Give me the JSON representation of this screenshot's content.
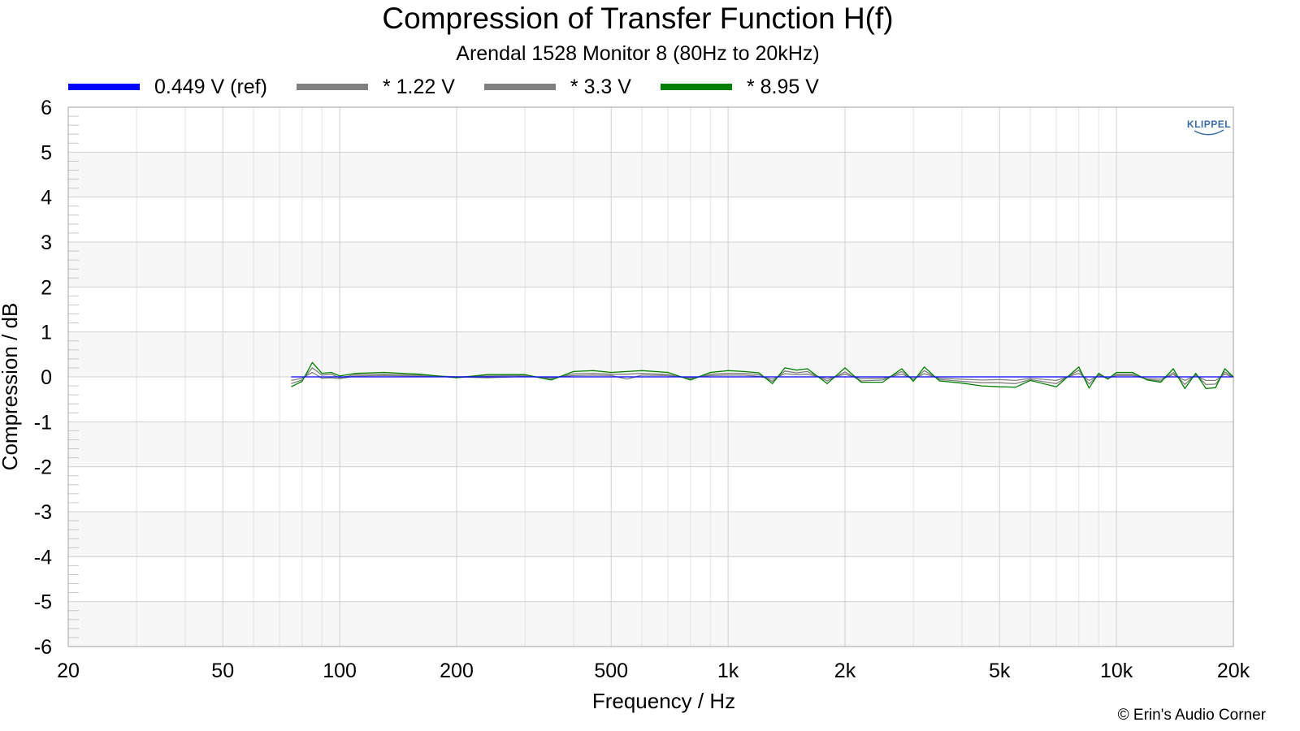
{
  "chart_data": {
    "type": "line",
    "title": "Compression of Transfer Function H(f)",
    "subtitle": "Arendal 1528 Monitor 8 (80Hz to 20kHz)",
    "xlabel": "Frequency / Hz",
    "ylabel": "Compression / dB",
    "xscale": "log",
    "xlim": [
      20,
      20000
    ],
    "ylim": [
      -6,
      6
    ],
    "xticks": [
      20,
      50,
      100,
      200,
      500,
      1000,
      2000,
      5000,
      10000,
      20000
    ],
    "xtick_labels": [
      "20",
      "50",
      "100",
      "200",
      "500",
      "1k",
      "2k",
      "5k",
      "10k",
      "20k"
    ],
    "yticks": [
      6,
      5,
      4,
      3,
      2,
      1,
      0,
      -1,
      -2,
      -3,
      -4,
      -5,
      -6
    ],
    "ytick_labels": [
      "6",
      "5",
      "4",
      "3",
      "2",
      "1",
      "0",
      "-1",
      "-2",
      "-3",
      "-4",
      "-5",
      "-6"
    ],
    "grid": true,
    "legend_position": "top",
    "series": [
      {
        "name": "0.449 V (ref)",
        "color": "#0000ff",
        "x": [
          75,
          20000
        ],
        "y": [
          0,
          0
        ]
      },
      {
        "name": "* 1.22 V",
        "color": "#808080",
        "x": [
          75,
          80,
          85,
          90,
          95,
          100,
          110,
          130,
          160,
          200,
          240,
          300,
          350,
          400,
          450,
          500,
          550,
          600,
          700,
          800,
          900,
          1000,
          1100,
          1200,
          1300,
          1400,
          1500,
          1600,
          1800,
          2000,
          2200,
          2500,
          2800,
          3000,
          3200,
          3500,
          4000,
          4500,
          5000,
          5500,
          6000,
          7000,
          8000,
          8500,
          9000,
          9500,
          10000,
          11000,
          12000,
          13000,
          14000,
          15000,
          16000,
          17000,
          18000,
          19000,
          20000
        ],
        "y": [
          -0.08,
          -0.03,
          0.1,
          -0.03,
          -0.02,
          -0.04,
          0.02,
          0.03,
          0.02,
          0.0,
          -0.02,
          0.01,
          -0.02,
          0.03,
          0.04,
          0.03,
          -0.05,
          0.04,
          0.03,
          -0.02,
          0.03,
          0.04,
          0.04,
          0.01,
          -0.05,
          0.07,
          0.05,
          0.06,
          -0.04,
          0.06,
          -0.04,
          -0.03,
          0.06,
          -0.04,
          0.07,
          -0.03,
          -0.05,
          -0.07,
          -0.06,
          -0.08,
          -0.03,
          -0.08,
          0.08,
          -0.08,
          0.03,
          -0.03,
          0.03,
          0.03,
          -0.04,
          -0.05,
          0.05,
          -0.08,
          0.03,
          -0.08,
          -0.08,
          0.06,
          0.0
        ]
      },
      {
        "name": "* 3.3 V",
        "color": "#808080",
        "x": [
          75,
          80,
          85,
          90,
          95,
          100,
          110,
          130,
          160,
          200,
          240,
          300,
          350,
          400,
          450,
          500,
          550,
          600,
          700,
          800,
          900,
          1000,
          1100,
          1200,
          1300,
          1400,
          1500,
          1600,
          1800,
          2000,
          2200,
          2500,
          2800,
          3000,
          3200,
          3500,
          4000,
          4500,
          5000,
          5500,
          6000,
          7000,
          8000,
          8500,
          9000,
          9500,
          10000,
          11000,
          12000,
          13000,
          14000,
          15000,
          16000,
          17000,
          18000,
          19000,
          20000
        ],
        "y": [
          -0.15,
          -0.07,
          0.2,
          0.04,
          0.06,
          -0.02,
          0.05,
          0.06,
          0.04,
          0.0,
          0.02,
          0.03,
          -0.04,
          0.07,
          0.08,
          0.06,
          0.06,
          0.08,
          0.05,
          -0.04,
          0.06,
          0.08,
          0.08,
          0.05,
          -0.1,
          0.13,
          0.09,
          0.12,
          -0.09,
          0.11,
          -0.09,
          -0.07,
          0.12,
          -0.08,
          0.14,
          -0.06,
          -0.1,
          -0.13,
          -0.13,
          -0.15,
          -0.06,
          -0.15,
          0.15,
          -0.16,
          0.05,
          -0.04,
          0.06,
          0.06,
          -0.06,
          -0.09,
          0.1,
          -0.17,
          0.06,
          -0.17,
          -0.16,
          0.11,
          0.0
        ]
      },
      {
        "name": "* 8.95 V",
        "color": "#008000",
        "x": [
          75,
          80,
          85,
          90,
          95,
          100,
          110,
          130,
          160,
          200,
          240,
          300,
          350,
          400,
          450,
          500,
          550,
          600,
          700,
          800,
          900,
          1000,
          1100,
          1200,
          1300,
          1400,
          1500,
          1600,
          1800,
          2000,
          2200,
          2500,
          2800,
          3000,
          3200,
          3500,
          4000,
          4500,
          5000,
          5500,
          6000,
          7000,
          8000,
          8500,
          9000,
          9500,
          10000,
          11000,
          12000,
          13000,
          14000,
          15000,
          16000,
          17000,
          18000,
          19000,
          20000
        ],
        "y": [
          -0.22,
          -0.1,
          0.32,
          0.08,
          0.1,
          0.02,
          0.08,
          0.1,
          0.06,
          -0.02,
          0.05,
          0.05,
          -0.07,
          0.12,
          0.14,
          0.1,
          0.12,
          0.14,
          0.1,
          -0.07,
          0.1,
          0.14,
          0.12,
          0.09,
          -0.15,
          0.2,
          0.15,
          0.18,
          -0.15,
          0.2,
          -0.12,
          -0.12,
          0.18,
          -0.1,
          0.22,
          -0.09,
          -0.14,
          -0.2,
          -0.22,
          -0.23,
          -0.08,
          -0.22,
          0.22,
          -0.25,
          0.08,
          -0.05,
          0.1,
          0.1,
          -0.07,
          -0.12,
          0.18,
          -0.26,
          0.08,
          -0.26,
          -0.24,
          0.18,
          0.0
        ]
      }
    ]
  },
  "copyright": "© Erin's Audio Corner",
  "logo_text": "KLIPPEL",
  "colors": {
    "grid_major": "#d0d0d0",
    "grid_minor": "#e2e2e2",
    "band": "#f7f7f7",
    "axis": "#a0a0a0",
    "logo": "#3a6ea5"
  }
}
